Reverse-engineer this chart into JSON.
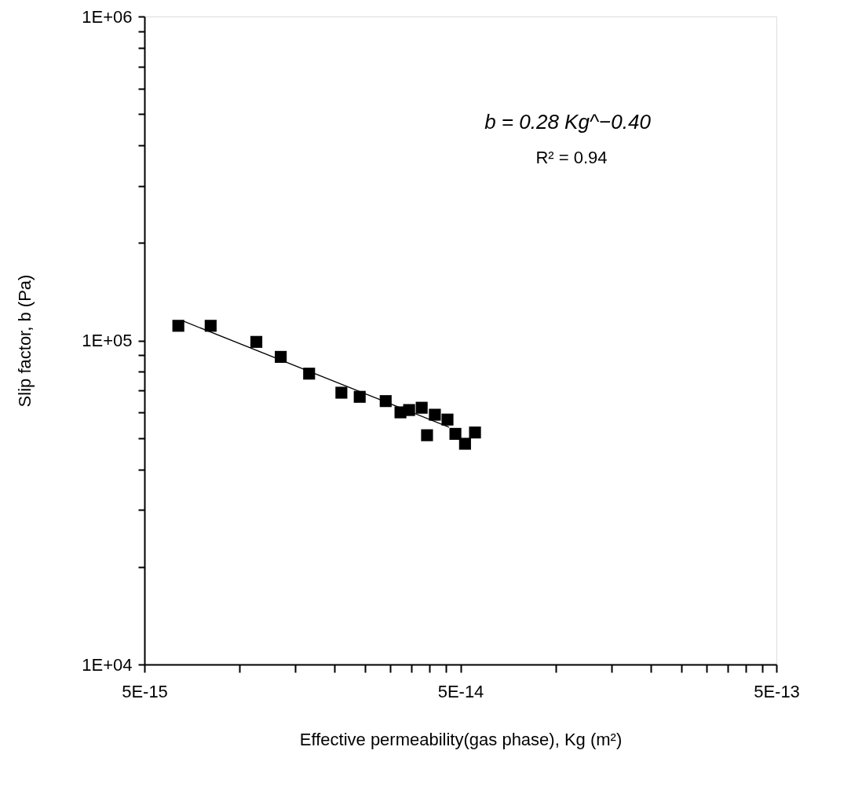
{
  "chart_data": {
    "type": "scatter",
    "xlabel": "Effective permeability(gas phase), Kg (m²)",
    "ylabel": "Slip factor, b (Pa)",
    "log": "xy",
    "grid": false,
    "marker": "square",
    "xlim": [
      5e-15,
      5e-13
    ],
    "ylim": [
      10000,
      1000000
    ],
    "xticks": [
      {
        "value": 5e-15,
        "label": "5E-15"
      },
      {
        "value": 1e-14,
        "label": null
      },
      {
        "value": 1.5e-14,
        "label": null
      },
      {
        "value": 2e-14,
        "label": null
      },
      {
        "value": 2.5e-14,
        "label": null
      },
      {
        "value": 3e-14,
        "label": null
      },
      {
        "value": 3.5e-14,
        "label": null
      },
      {
        "value": 4e-14,
        "label": null
      },
      {
        "value": 4.5e-14,
        "label": null
      },
      {
        "value": 5e-14,
        "label": "5E-14"
      },
      {
        "value": 1e-13,
        "label": null
      },
      {
        "value": 1.5e-13,
        "label": null
      },
      {
        "value": 2e-13,
        "label": null
      },
      {
        "value": 2.5e-13,
        "label": null
      },
      {
        "value": 3e-13,
        "label": null
      },
      {
        "value": 3.5e-13,
        "label": null
      },
      {
        "value": 4e-13,
        "label": null
      },
      {
        "value": 4.5e-13,
        "label": null
      },
      {
        "value": 5e-13,
        "label": "5E-13"
      }
    ],
    "yticks": [
      {
        "value": 10000,
        "label": "1E+04"
      },
      {
        "value": 20000,
        "label": null
      },
      {
        "value": 30000,
        "label": null
      },
      {
        "value": 40000,
        "label": null
      },
      {
        "value": 50000,
        "label": null
      },
      {
        "value": 60000,
        "label": null
      },
      {
        "value": 70000,
        "label": null
      },
      {
        "value": 80000,
        "label": null
      },
      {
        "value": 90000,
        "label": null
      },
      {
        "value": 100000,
        "label": "1E+05"
      },
      {
        "value": 200000,
        "label": null
      },
      {
        "value": 300000,
        "label": null
      },
      {
        "value": 400000,
        "label": null
      },
      {
        "value": 500000,
        "label": null
      },
      {
        "value": 600000,
        "label": null
      },
      {
        "value": 700000,
        "label": null
      },
      {
        "value": 800000,
        "label": null
      },
      {
        "value": 900000,
        "label": null
      },
      {
        "value": 1000000,
        "label": "1E+06"
      }
    ],
    "series": [
      {
        "color": "#000000",
        "x": [
          6.4e-15,
          8.1e-15,
          1.13e-14,
          1.35e-14,
          1.66e-14,
          2.1e-14,
          2.4e-14,
          2.9e-14,
          3.23e-14,
          3.44e-14,
          3.77e-14,
          3.92e-14,
          4.15e-14,
          4.55e-14,
          4.82e-14,
          5.17e-14,
          5.56e-14
        ],
        "values": [
          111000,
          111000,
          99000,
          89000,
          79000,
          69000,
          67000,
          65000,
          60000,
          61000,
          62000,
          51000,
          59000,
          57000,
          51500,
          48000,
          52000
        ]
      },
      {
        "type": "line",
        "marker": "none",
        "color": "#000000",
        "x": [
          6.6e-15,
          4.6e-14
        ],
        "values": [
          115000,
          54000
        ]
      }
    ],
    "annotations": [
      "b = 0.28 Kg^−0.40",
      "R² = 0.94"
    ]
  }
}
